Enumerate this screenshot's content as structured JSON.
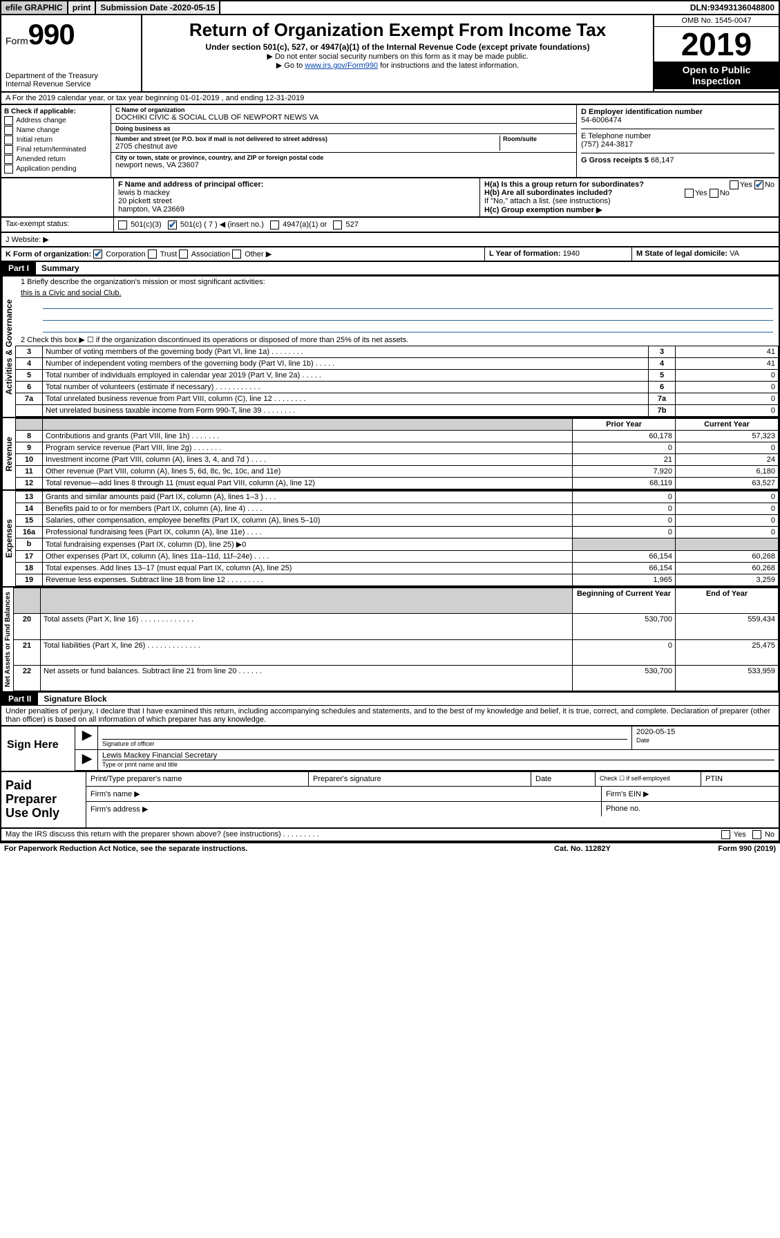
{
  "topbar": {
    "efile": "efile GRAPHIC",
    "print": "print",
    "submission_label": "Submission Date - ",
    "submission_date": "2020-05-15",
    "dln_label": "DLN: ",
    "dln": "93493136048800"
  },
  "header": {
    "form_prefix": "Form",
    "form_number": "990",
    "dept": "Department of the Treasury\nInternal Revenue Service",
    "title": "Return of Organization Exempt From Income Tax",
    "subtitle": "Under section 501(c), 527, or 4947(a)(1) of the Internal Revenue Code (except private foundations)",
    "note1": "▶ Do not enter social security numbers on this form as it may be made public.",
    "note2_pre": "▶ Go to ",
    "note2_link": "www.irs.gov/Form990",
    "note2_post": " for instructions and the latest information.",
    "omb": "OMB No. 1545-0047",
    "year": "2019",
    "open_public": "Open to Public Inspection"
  },
  "line_a": "A For the 2019 calendar year, or tax year beginning 01-01-2019   , and ending 12-31-2019",
  "section_b": {
    "header": "B Check if applicable:",
    "items": [
      "Address change",
      "Name change",
      "Initial return",
      "Final return/terminated",
      "Amended return",
      "Application pending"
    ]
  },
  "section_c": {
    "name_label": "C Name of organization",
    "name": "DOCHIKI CIVIC & SOCIAL CLUB OF NEWPORT NEWS VA",
    "dba_label": "Doing business as",
    "dba": "",
    "street_label": "Number and street (or P.O. box if mail is not delivered to street address)",
    "room_label": "Room/suite",
    "street": "2705 chestnut ave",
    "city_label": "City or town, state or province, country, and ZIP or foreign postal code",
    "city": "newport news, VA  23607"
  },
  "section_d": {
    "ein_label": "D Employer identification number",
    "ein": "54-6006474",
    "phone_label": "E Telephone number",
    "phone": "(757) 244-3817",
    "gross_label": "G Gross receipts $ ",
    "gross": "68,147"
  },
  "section_f": {
    "label": "F  Name and address of principal officer:",
    "name": "lewis b mackey",
    "street": "20 pickett street",
    "city": "hampton, VA  23669"
  },
  "section_h": {
    "ha_label": "H(a)  Is this a group return for subordinates?",
    "hb_label": "H(b)  Are all subordinates included?",
    "hb_note": "If \"No,\" attach a list. (see instructions)",
    "hc_label": "H(c)  Group exemption number ▶",
    "yes": "Yes",
    "no": "No"
  },
  "tax_status": {
    "label": "Tax-exempt status:",
    "opt1": "501(c)(3)",
    "opt2": "501(c) ( 7 ) ◀ (insert no.)",
    "opt3": "4947(a)(1) or",
    "opt4": "527"
  },
  "website": {
    "label": "J   Website: ▶"
  },
  "line_k": {
    "label": "K Form of organization:",
    "corp": "Corporation",
    "trust": "Trust",
    "assoc": "Association",
    "other": "Other ▶"
  },
  "line_l": {
    "label": "L Year of formation: ",
    "value": "1940"
  },
  "line_m": {
    "label": "M State of legal domicile: ",
    "value": "VA"
  },
  "part1": {
    "header": "Part I",
    "title": "Summary",
    "q1": "1  Briefly describe the organization's mission or most significant activities:",
    "q1_answer": "this is a Civic and social Club.",
    "q2": "2   Check this box ▶ ☐  if the organization discontinued its operations or disposed of more than 25% of its net assets."
  },
  "vlabels": {
    "gov": "Activities & Governance",
    "rev": "Revenue",
    "exp": "Expenses",
    "net": "Net Assets or Fund Balances"
  },
  "gov_rows": [
    {
      "n": "3",
      "desc": "Number of voting members of the governing body (Part VI, line 1a)   .    .    .    .    .    .    .    .",
      "k": "3",
      "v": "41"
    },
    {
      "n": "4",
      "desc": "Number of independent voting members of the governing body (Part VI, line 1b)    .    .    .    .    .",
      "k": "4",
      "v": "41"
    },
    {
      "n": "5",
      "desc": "Total number of individuals employed in calendar year 2019 (Part V, line 2a)    .    .    .    .    .",
      "k": "5",
      "v": "0"
    },
    {
      "n": "6",
      "desc": "Total number of volunteers (estimate if necessary)    .    .    .    .    .    .    .    .    .    .    .",
      "k": "6",
      "v": "0"
    },
    {
      "n": "7a",
      "desc": "Total unrelated business revenue from Part VIII, column (C), line 12    .    .    .    .    .    .    .    .",
      "k": "7a",
      "v": "0"
    },
    {
      "n": "",
      "desc": "Net unrelated business taxable income from Form 990-T, line 39    .    .    .    .    .    .    .    .",
      "k": "7b",
      "v": "0"
    }
  ],
  "col_headers": {
    "prior": "Prior Year",
    "current": "Current Year",
    "boy": "Beginning of Current Year",
    "eoy": "End of Year"
  },
  "rev_rows": [
    {
      "n": "8",
      "desc": "Contributions and grants (Part VIII, line 1h)    .    .    .    .    .    .    .",
      "p": "60,178",
      "c": "57,323"
    },
    {
      "n": "9",
      "desc": "Program service revenue (Part VIII, line 2g)    .    .    .    .    .    .    .",
      "p": "0",
      "c": "0"
    },
    {
      "n": "10",
      "desc": "Investment income (Part VIII, column (A), lines 3, 4, and 7d )    .    .    .    .",
      "p": "21",
      "c": "24"
    },
    {
      "n": "11",
      "desc": "Other revenue (Part VIII, column (A), lines 5, 6d, 8c, 9c, 10c, and 11e)",
      "p": "7,920",
      "c": "6,180"
    },
    {
      "n": "12",
      "desc": "Total revenue—add lines 8 through 11 (must equal Part VIII, column (A), line 12)",
      "p": "68,119",
      "c": "63,527"
    }
  ],
  "exp_rows": [
    {
      "n": "13",
      "desc": "Grants and similar amounts paid (Part IX, column (A), lines 1–3 )    .    .    .",
      "p": "0",
      "c": "0"
    },
    {
      "n": "14",
      "desc": "Benefits paid to or for members (Part IX, column (A), line 4)    .    .    .    .",
      "p": "0",
      "c": "0"
    },
    {
      "n": "15",
      "desc": "Salaries, other compensation, employee benefits (Part IX, column (A), lines 5–10)",
      "p": "0",
      "c": "0"
    },
    {
      "n": "16a",
      "desc": "Professional fundraising fees (Part IX, column (A), line 11e)    .    .    .    .",
      "p": "0",
      "c": "0"
    },
    {
      "n": "b",
      "desc": "Total fundraising expenses (Part IX, column (D), line 25) ▶0",
      "p": "",
      "c": "",
      "shade": true
    },
    {
      "n": "17",
      "desc": "Other expenses (Part IX, column (A), lines 11a–11d, 11f–24e)    .    .    .    .",
      "p": "66,154",
      "c": "60,268"
    },
    {
      "n": "18",
      "desc": "Total expenses. Add lines 13–17 (must equal Part IX, column (A), line 25)",
      "p": "66,154",
      "c": "60,268"
    },
    {
      "n": "19",
      "desc": "Revenue less expenses. Subtract line 18 from line 12    .    .    .    .    .    .    .    .    .",
      "p": "1,965",
      "c": "3,259"
    }
  ],
  "net_rows": [
    {
      "n": "20",
      "desc": "Total assets (Part X, line 16)    .    .    .    .    .    .    .    .    .    .    .    .    .",
      "p": "530,700",
      "c": "559,434"
    },
    {
      "n": "21",
      "desc": "Total liabilities (Part X, line 26)    .    .    .    .    .    .    .    .    .    .    .    .    .",
      "p": "0",
      "c": "25,475"
    },
    {
      "n": "22",
      "desc": "Net assets or fund balances. Subtract line 21 from line 20    .    .    .    .    .    .",
      "p": "530,700",
      "c": "533,959"
    }
  ],
  "part2": {
    "header": "Part II",
    "title": "Signature Block",
    "perjury": "Under penalties of perjury, I declare that I have examined this return, including accompanying schedules and statements, and to the best of my knowledge and belief, it is true, correct, and complete. Declaration of preparer (other than officer) is based on all information of which preparer has any knowledge."
  },
  "sign": {
    "here": "Sign Here",
    "sig_officer": "Signature of officer",
    "date_label": "Date",
    "date": "2020-05-15",
    "name_title": "Lewis Mackey  Financial Secretary",
    "name_label": "Type or print name and title"
  },
  "paid": {
    "title": "Paid Preparer Use Only",
    "print_name": "Print/Type preparer's name",
    "prep_sig": "Preparer's signature",
    "date": "Date",
    "check_self": "Check ☐ if self-employed",
    "ptin": "PTIN",
    "firm_name": "Firm's name   ▶",
    "firm_ein": "Firm's EIN ▶",
    "firm_addr": "Firm's address ▶",
    "phone": "Phone no."
  },
  "footer": {
    "discuss": "May the IRS discuss this return with the preparer shown above? (see instructions)    .    .    .    .    .    .    .    .    .",
    "yes": "Yes",
    "no": "No",
    "paperwork": "For Paperwork Reduction Act Notice, see the separate instructions.",
    "cat": "Cat. No. 11282Y",
    "form": "Form 990 (2019)"
  }
}
